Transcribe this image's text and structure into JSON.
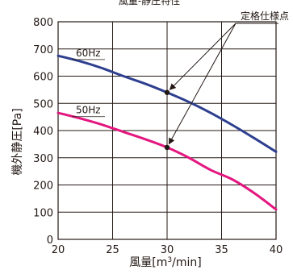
{
  "chart_data": {
    "type": "line",
    "title": "",
    "top_title": "風量-静圧特性",
    "xlabel": "風量[m³/min]",
    "xlabel_main": "風量[m",
    "xlabel_sup": "3",
    "xlabel_tail": "/min]",
    "ylabel": "機外静圧[Pa]",
    "xlim": [
      20,
      40
    ],
    "ylim": [
      0,
      800
    ],
    "x_ticks": [
      20,
      25,
      30,
      35,
      40
    ],
    "y_ticks": [
      0,
      100,
      200,
      300,
      400,
      500,
      600,
      700,
      800
    ],
    "grid": true,
    "series": [
      {
        "name": "60Hz",
        "color": "#2e3f8f",
        "x": [
          20,
          22,
          24,
          26,
          28,
          30,
          32,
          34,
          36,
          38,
          40
        ],
        "y": [
          675,
          655,
          630,
          600,
          572,
          540,
          505,
          465,
          420,
          372,
          322
        ]
      },
      {
        "name": "50Hz",
        "color": "#e4167f",
        "x": [
          20,
          22,
          24,
          26,
          28,
          30,
          32,
          34,
          36,
          38,
          40
        ],
        "y": [
          465,
          445,
          422,
          395,
          368,
          338,
          300,
          255,
          220,
          170,
          110
        ]
      }
    ],
    "rated_points": [
      {
        "x": 30,
        "y": 540
      },
      {
        "x": 30,
        "y": 338
      }
    ],
    "annotation": "定格仕様点"
  }
}
